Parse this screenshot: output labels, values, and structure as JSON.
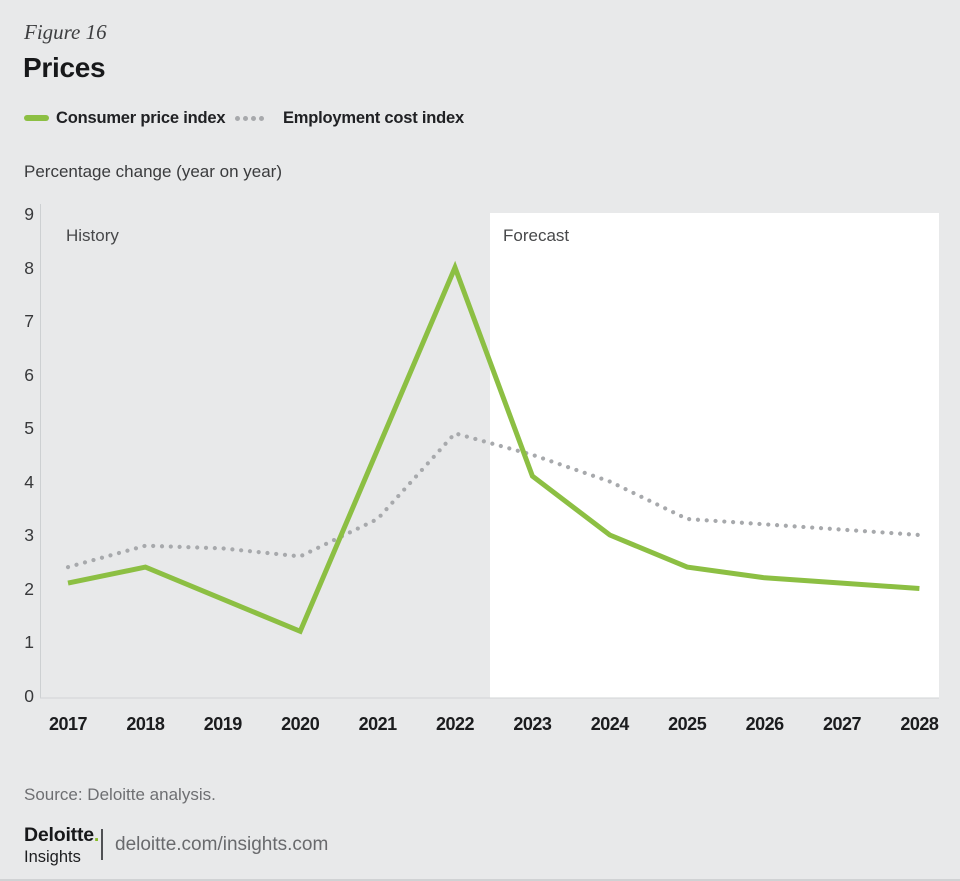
{
  "page": {
    "figure_label": "Figure 16",
    "title": "Prices",
    "axis_title": "Percentage change (year on year)",
    "source": "Source: Deloitte analysis.",
    "footer": {
      "brand": "Deloitte",
      "brand_dot": ".",
      "brand_dot_color": "#86bc25",
      "brand_sub": "Insights",
      "url": "deloitte.com/insights.com"
    }
  },
  "legend": {
    "items": [
      {
        "label": "Consumer price index",
        "color": "#8cbf43",
        "style": "solid"
      },
      {
        "label": "Employment cost index",
        "color": "#a7a9ac",
        "style": "dotted"
      }
    ]
  },
  "chart_data": {
    "type": "line",
    "title": "Prices",
    "ylabel": "Percentage change (year on year)",
    "categories": [
      "2017",
      "2018",
      "2019",
      "2020",
      "2021",
      "2022",
      "2023",
      "2024",
      "2025",
      "2026",
      "2027",
      "2028"
    ],
    "series": [
      {
        "name": "Consumer price index",
        "style": "solid",
        "color": "#8cbf43",
        "values": [
          2.1,
          2.4,
          1.8,
          1.2,
          4.6,
          8.0,
          4.1,
          3.0,
          2.4,
          2.2,
          2.1,
          2.0
        ]
      },
      {
        "name": "Employment cost index",
        "style": "dotted",
        "color": "#a7a9ac",
        "values": [
          2.4,
          2.8,
          2.75,
          2.6,
          3.3,
          4.9,
          4.5,
          4.0,
          3.3,
          3.2,
          3.1,
          3.0
        ]
      }
    ],
    "ylim": [
      0,
      9
    ],
    "yticks": [
      0,
      1,
      2,
      3,
      4,
      5,
      6,
      7,
      8,
      9
    ],
    "grid": false,
    "legend_position": "top",
    "regions": {
      "history_label": "History",
      "forecast_label": "Forecast",
      "forecast_start_after": "2022"
    },
    "background": {
      "page": "#e8e9ea",
      "forecast_panel": "#ffffff"
    },
    "axis_color": "#cdd0d2"
  }
}
